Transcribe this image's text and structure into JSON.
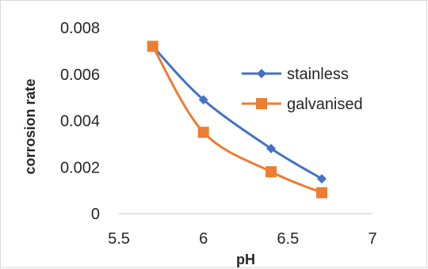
{
  "chart_data": {
    "type": "line",
    "title": "",
    "xlabel": "pH",
    "ylabel": "corrosion rate",
    "xlim": [
      5.5,
      7
    ],
    "ylim": [
      0,
      0.008
    ],
    "x_ticks": [
      "5.5",
      "6",
      "6.5",
      "7"
    ],
    "y_ticks": [
      "0",
      "0.002",
      "0.004",
      "0.006",
      "0.008"
    ],
    "grid": false,
    "legend_position": "right",
    "smooth": true,
    "series": [
      {
        "name": "stainless",
        "color": "#4472c4",
        "marker": "diamond",
        "x": [
          5.7,
          6.0,
          6.4,
          6.7
        ],
        "y": [
          0.0072,
          0.0049,
          0.0028,
          0.0015
        ]
      },
      {
        "name": "galvanised",
        "color": "#ed7d31",
        "marker": "square",
        "x": [
          5.7,
          6.0,
          6.4,
          6.7
        ],
        "y": [
          0.0072,
          0.0035,
          0.0018,
          0.0009
        ]
      }
    ]
  }
}
